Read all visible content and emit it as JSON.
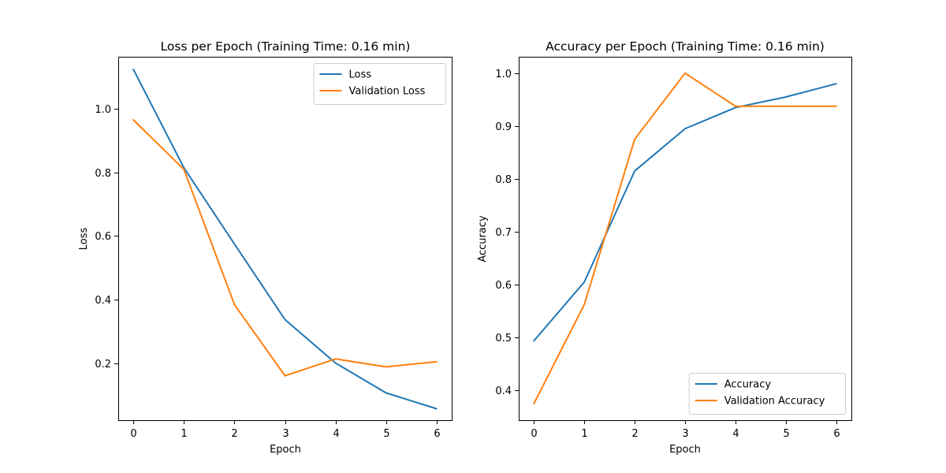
{
  "chart_data": [
    {
      "type": "line",
      "title": "Loss per Epoch (Training Time: 0.16 min)",
      "xlabel": "Epoch",
      "ylabel": "Loss",
      "x": [
        0,
        1,
        2,
        3,
        4,
        5,
        6
      ],
      "xlim": [
        -0.3,
        6.3
      ],
      "ylim": [
        0.02,
        1.165
      ],
      "xticks": [
        0,
        1,
        2,
        3,
        4,
        5,
        6
      ],
      "yticks": [
        0.2,
        0.4,
        0.6,
        0.8,
        1.0
      ],
      "ytick_labels": [
        "0.2",
        "0.4",
        "0.6",
        "0.8",
        "1.0"
      ],
      "grid": false,
      "legend_position": "top-right",
      "series": [
        {
          "name": "Loss",
          "color": "#1f77b4",
          "values": [
            1.125,
            0.815,
            0.575,
            0.337,
            0.2,
            0.106,
            0.056
          ]
        },
        {
          "name": "Validation Loss",
          "color": "#ff7f0e",
          "values": [
            0.966,
            0.81,
            0.384,
            0.16,
            0.213,
            0.188,
            0.204
          ]
        }
      ]
    },
    {
      "type": "line",
      "title": "Accuracy per Epoch (Training Time: 0.16 min)",
      "xlabel": "Epoch",
      "ylabel": "Accuracy",
      "x": [
        0,
        1,
        2,
        3,
        4,
        5,
        6
      ],
      "xlim": [
        -0.3,
        6.3
      ],
      "ylim": [
        0.344,
        1.031
      ],
      "xticks": [
        0,
        1,
        2,
        3,
        4,
        5,
        6
      ],
      "yticks": [
        0.4,
        0.5,
        0.6,
        0.7,
        0.8,
        0.9,
        1.0
      ],
      "ytick_labels": [
        "0.4",
        "0.5",
        "0.6",
        "0.7",
        "0.8",
        "0.9",
        "1.0"
      ],
      "grid": false,
      "legend_position": "bottom-right",
      "series": [
        {
          "name": "Accuracy",
          "color": "#1f77b4",
          "values": [
            0.494,
            0.605,
            0.815,
            0.895,
            0.935,
            0.955,
            0.98
          ]
        },
        {
          "name": "Validation Accuracy",
          "color": "#ff7f0e",
          "values": [
            0.375,
            0.5625,
            0.875,
            1.0,
            0.9375,
            0.9375,
            0.9375
          ]
        }
      ]
    }
  ]
}
